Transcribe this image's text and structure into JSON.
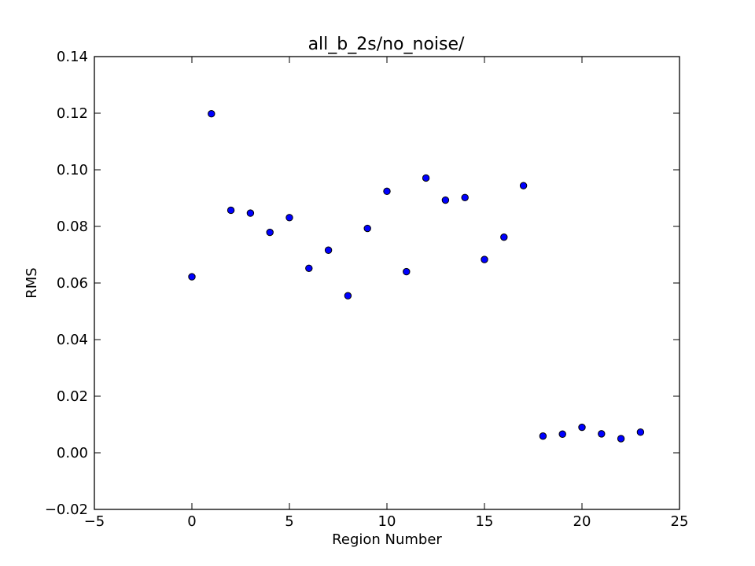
{
  "chart_data": {
    "type": "scatter",
    "title": "all_b_2s/no_noise/",
    "xlabel": "Region Number",
    "ylabel": "RMS",
    "xlim": [
      -5,
      25
    ],
    "ylim": [
      -0.02,
      0.14
    ],
    "xticks": [
      -5,
      0,
      5,
      10,
      15,
      20,
      25
    ],
    "xtick_labels": [
      "−5",
      "0",
      "5",
      "10",
      "15",
      "20",
      "25"
    ],
    "yticks": [
      -0.02,
      0.0,
      0.02,
      0.04,
      0.06,
      0.08,
      0.1,
      0.12,
      0.14
    ],
    "ytick_labels": [
      "−0.02",
      "0.00",
      "0.02",
      "0.04",
      "0.06",
      "0.08",
      "0.10",
      "0.12",
      "0.14"
    ],
    "grid": false,
    "marker_color": "#0000ff",
    "series": [
      {
        "x": [
          0,
          1,
          2,
          3,
          4,
          5,
          6,
          7,
          8,
          9,
          10,
          11,
          12,
          13,
          14,
          15,
          16,
          17,
          18,
          19,
          20,
          21,
          22,
          23
        ],
        "y": [
          0.0622,
          0.1198,
          0.0857,
          0.0847,
          0.0779,
          0.0831,
          0.0652,
          0.0716,
          0.0555,
          0.0793,
          0.0924,
          0.064,
          0.0971,
          0.0893,
          0.0902,
          0.0683,
          0.0762,
          0.0944,
          0.0059,
          0.0066,
          0.009,
          0.0067,
          0.005,
          0.0073
        ]
      }
    ]
  }
}
